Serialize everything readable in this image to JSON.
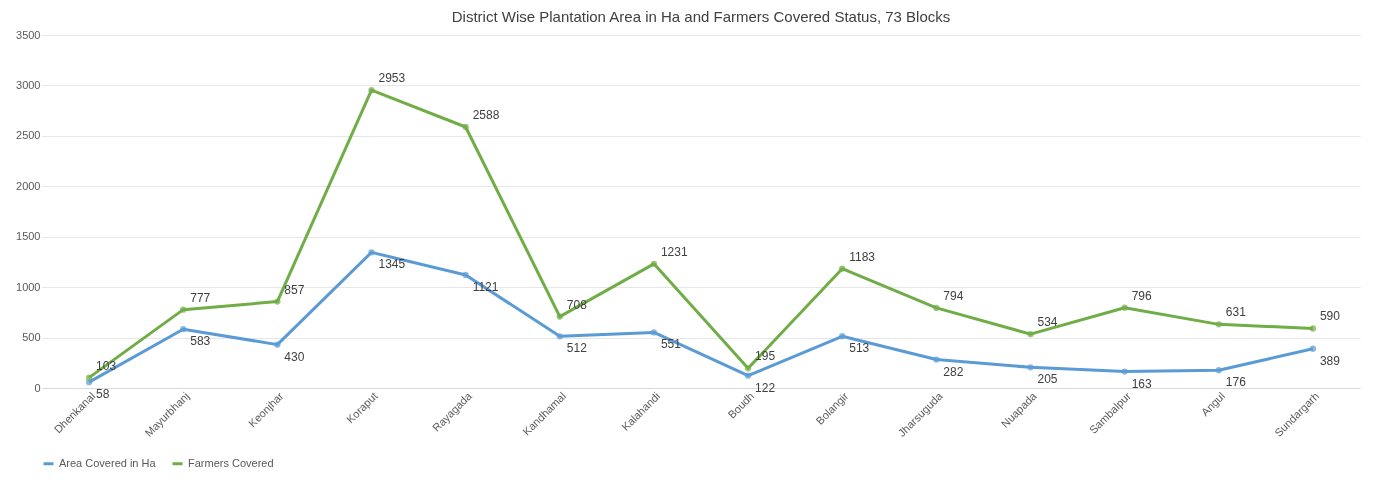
{
  "chart_data": {
    "type": "line",
    "title": "District Wise Plantation Area in Ha and Farmers Covered Status, 73 Blocks",
    "categories": [
      "Dhenkanal",
      "Mayurbhanj",
      "Keonjhar",
      "Koraput",
      "Rayagada",
      "Kandhamal",
      "Kalahandi",
      "Boudh",
      "Bolangir",
      "Jharsuguda",
      "Nuapada",
      "Sambalpur",
      "Angul",
      "Sundargarh"
    ],
    "series": [
      {
        "name": "Area Covered in Ha",
        "color": "#5b9bd5",
        "values": [
          58,
          583,
          430,
          1345,
          1121,
          512,
          551,
          122,
          513,
          282,
          205,
          163,
          176,
          389
        ]
      },
      {
        "name": "Farmers Covered",
        "color": "#70ad47",
        "values": [
          103,
          777,
          857,
          2953,
          2588,
          708,
          1231,
          195,
          1183,
          794,
          534,
          796,
          631,
          590
        ]
      }
    ],
    "ylim": [
      0,
      3500
    ],
    "yticks": [
      0,
      500,
      1000,
      1500,
      2000,
      2500,
      3000,
      3500
    ],
    "grid": "y",
    "legend": "bottom",
    "marker": "circle",
    "line_style": "solid",
    "data_labels": true
  }
}
